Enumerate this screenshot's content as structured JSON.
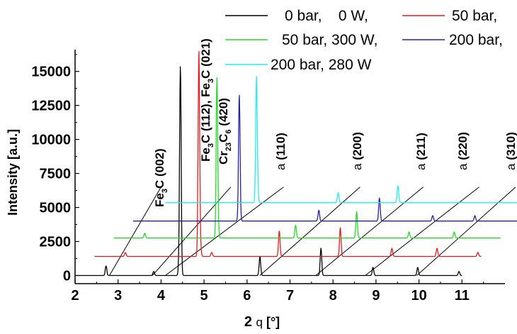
{
  "chart_data": {
    "type": "line",
    "xlabel": "2 q [°]",
    "ylabel": "Intensity [a.u.]",
    "xlim": [
      2,
      12
    ],
    "ylim": [
      -600,
      16600
    ],
    "x_ticks": [
      2,
      3,
      4,
      5,
      6,
      7,
      8,
      9,
      10,
      11
    ],
    "y_ticks": [
      0,
      2500,
      5000,
      7500,
      10000,
      12500,
      15000
    ],
    "legend_position": "top-right",
    "series": [
      {
        "name": "0 bar,    0 W,",
        "color": "#000000",
        "baseline": 0,
        "x_start": 2.0,
        "x_end": 11.0,
        "peaks": [
          [
            2.72,
            700
          ],
          [
            3.83,
            300
          ],
          [
            4.42,
            800
          ],
          [
            4.45,
            15200
          ],
          [
            6.3,
            1400
          ],
          [
            7.72,
            2000
          ],
          [
            8.93,
            600
          ],
          [
            9.97,
            600
          ],
          [
            10.93,
            300
          ]
        ]
      },
      {
        "name": "50 bar,",
        "color": "#e41a1c",
        "baseline": 1400,
        "x_start": 2.45,
        "x_end": 11.45,
        "peaks": [
          [
            3.17,
            1700
          ],
          [
            4.88,
            16500
          ],
          [
            4.92,
            2000
          ],
          [
            5.18,
            1700
          ],
          [
            6.75,
            3300
          ],
          [
            8.17,
            3500
          ],
          [
            9.37,
            2000
          ],
          [
            10.42,
            2000
          ],
          [
            11.37,
            1700
          ]
        ]
      },
      {
        "name": "50 bar, 300 W,",
        "color": "#22dd22",
        "baseline": 2750,
        "x_start": 2.9,
        "x_end": 11.9,
        "peaks": [
          [
            3.62,
            3100
          ],
          [
            5.3,
            14400
          ],
          [
            5.33,
            3300
          ],
          [
            7.13,
            3700
          ],
          [
            8.55,
            4700
          ],
          [
            9.77,
            3200
          ],
          [
            10.82,
            3200
          ]
        ]
      },
      {
        "name": "200 bar,",
        "color": "#2222aa",
        "baseline": 4000,
        "x_start": 3.35,
        "x_end": 12.35,
        "peaks": [
          [
            5.82,
            13300
          ],
          [
            7.67,
            4800
          ],
          [
            9.08,
            5700
          ],
          [
            10.32,
            4400
          ],
          [
            11.3,
            4400
          ]
        ]
      },
      {
        "name": "200 bar, 280 W",
        "color": "#22eeee",
        "baseline": 5350,
        "x_start": 4.1,
        "x_end": 12.35,
        "peaks": [
          [
            6.22,
            14500
          ],
          [
            6.25,
            5900
          ],
          [
            8.12,
            6100
          ],
          [
            9.51,
            6600
          ]
        ]
      }
    ],
    "annotations": [
      "Fe3C (002)",
      "Fe3C (112), Fe3C (021)",
      "Cr23C6 (420)",
      "a (110)",
      "a (200)",
      "a (211)",
      "a (220)",
      "a (310)"
    ]
  }
}
